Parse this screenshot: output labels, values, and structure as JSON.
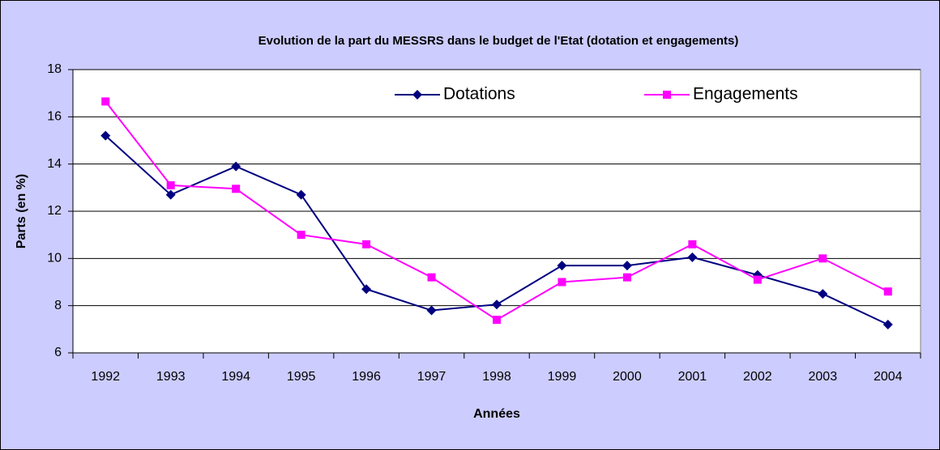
{
  "chart_data": {
    "type": "line",
    "title": "Evolution de la part du MESSRS dans le budget de l'Etat (dotation et engagements)",
    "xlabel": "Années",
    "ylabel": "Parts (en %)",
    "categories": [
      "1992",
      "1993",
      "1994",
      "1995",
      "1996",
      "1997",
      "1998",
      "1999",
      "2000",
      "2001",
      "2002",
      "2003",
      "2004"
    ],
    "series": [
      {
        "name": "Dotations",
        "color": "#000080",
        "marker": "diamond",
        "values": [
          15.2,
          12.7,
          13.9,
          12.7,
          8.7,
          7.8,
          8.05,
          9.7,
          9.7,
          10.05,
          9.3,
          8.5,
          7.2
        ]
      },
      {
        "name": "Engagements",
        "color": "#ff00ff",
        "marker": "square",
        "values": [
          16.65,
          13.1,
          12.95,
          11.0,
          10.6,
          9.2,
          7.4,
          9.0,
          9.2,
          10.6,
          9.1,
          10.0,
          8.6
        ]
      }
    ],
    "ylim": [
      6,
      18
    ],
    "yticks": [
      6,
      8,
      10,
      12,
      14,
      16,
      18
    ],
    "grid": true,
    "legend": "top"
  }
}
